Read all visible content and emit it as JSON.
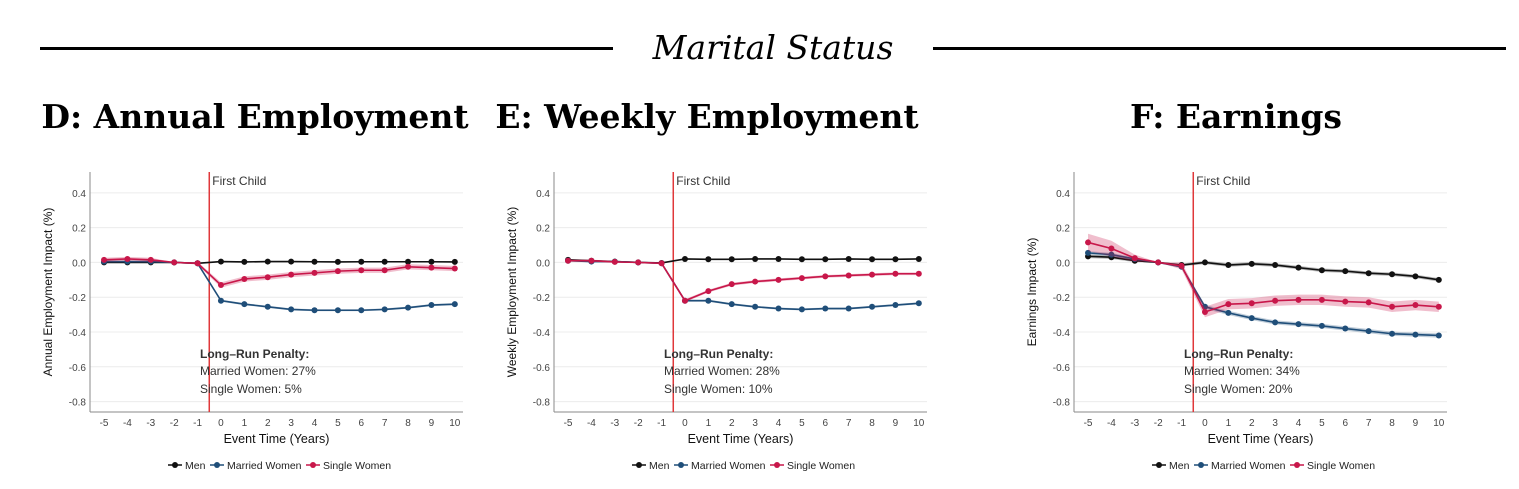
{
  "header": {
    "section_title": "Marital Status"
  },
  "colors": {
    "men": "#111111",
    "married": "#1f4e79",
    "single": "#c8174a",
    "event_line": "#e0383a"
  },
  "chart_data": [
    {
      "type": "line",
      "panel_title": "D: Annual Employment",
      "xlabel": "Event Time (Years)",
      "ylabel": "Annual Employment Impact (%)",
      "x": [
        -5,
        -4,
        -3,
        -2,
        -1,
        0,
        1,
        2,
        3,
        4,
        5,
        6,
        7,
        8,
        9,
        10
      ],
      "xlim": [
        -5.6,
        10.35
      ],
      "ylim": [
        -0.86,
        0.52
      ],
      "yticks": [
        0.4,
        0.2,
        0.0,
        -0.2,
        -0.4,
        -0.6,
        -0.8
      ],
      "ytick_labels": [
        "0.4",
        "0.2",
        "0.0",
        "-0.2",
        "-0.4",
        "-0.6",
        "-0.8"
      ],
      "xtick_labels": [
        "-5",
        "-4",
        "-3",
        "-2",
        "-1",
        "0",
        "1",
        "2",
        "3",
        "4",
        "5",
        "6",
        "7",
        "8",
        "9",
        "10"
      ],
      "event_x": -0.5,
      "event_label": "First Child",
      "series": [
        {
          "name": "Men",
          "key": "men",
          "values": [
            0.0,
            0.0,
            0.0,
            0.0,
            -0.005,
            0.005,
            0.003,
            0.005,
            0.005,
            0.004,
            0.003,
            0.004,
            0.004,
            0.004,
            0.004,
            0.003
          ],
          "band": [
            0.003,
            0.003,
            0.003,
            0,
            0.003,
            0.003,
            0.003,
            0.003,
            0.003,
            0.003,
            0.003,
            0.003,
            0.003,
            0.003,
            0.003,
            0.003
          ]
        },
        {
          "name": "Married Women",
          "key": "married",
          "values": [
            0.005,
            0.005,
            0.005,
            0.0,
            -0.005,
            -0.22,
            -0.24,
            -0.255,
            -0.27,
            -0.275,
            -0.275,
            -0.275,
            -0.27,
            -0.26,
            -0.245,
            -0.24
          ],
          "band": [
            0.004,
            0.004,
            0.004,
            0,
            0.004,
            0.006,
            0.006,
            0.006,
            0.006,
            0.006,
            0.006,
            0.006,
            0.006,
            0.006,
            0.006,
            0.006
          ]
        },
        {
          "name": "Single Women",
          "key": "single",
          "values": [
            0.015,
            0.02,
            0.015,
            0.0,
            -0.005,
            -0.13,
            -0.095,
            -0.085,
            -0.07,
            -0.06,
            -0.05,
            -0.045,
            -0.045,
            -0.025,
            -0.03,
            -0.035
          ],
          "band": [
            0.012,
            0.012,
            0.012,
            0,
            0.008,
            0.015,
            0.015,
            0.015,
            0.015,
            0.015,
            0.015,
            0.015,
            0.015,
            0.015,
            0.015,
            0.015
          ]
        }
      ],
      "annotation_title": "Long–Run Penalty:",
      "annotation_lines": [
        "Married Women: 27%",
        "Single Women: 5%"
      ],
      "legend": [
        "Men",
        "Married Women",
        "Single Women"
      ]
    },
    {
      "type": "line",
      "panel_title": "E: Weekly Employment",
      "xlabel": "Event Time (Years)",
      "ylabel": "Weekly Employment Impact (%)",
      "x": [
        -5,
        -4,
        -3,
        -2,
        -1,
        0,
        1,
        2,
        3,
        4,
        5,
        6,
        7,
        8,
        9,
        10
      ],
      "xlim": [
        -5.6,
        10.35
      ],
      "ylim": [
        -0.86,
        0.52
      ],
      "yticks": [
        0.4,
        0.2,
        0.0,
        -0.2,
        -0.4,
        -0.6,
        -0.8
      ],
      "ytick_labels": [
        "0.4",
        "0.2",
        "0.0",
        "-0.2",
        "-0.4",
        "-0.6",
        "-0.8"
      ],
      "xtick_labels": [
        "-5",
        "-4",
        "-3",
        "-2",
        "-1",
        "0",
        "1",
        "2",
        "3",
        "4",
        "5",
        "6",
        "7",
        "8",
        "9",
        "10"
      ],
      "event_x": -0.5,
      "event_label": "First Child",
      "series": [
        {
          "name": "Men",
          "key": "men",
          "values": [
            0.015,
            0.01,
            0.005,
            0.0,
            -0.003,
            0.02,
            0.018,
            0.018,
            0.02,
            0.02,
            0.018,
            0.018,
            0.02,
            0.018,
            0.018,
            0.02
          ],
          "band": [
            0.003,
            0.003,
            0.003,
            0,
            0.003,
            0.003,
            0.003,
            0.003,
            0.003,
            0.003,
            0.003,
            0.003,
            0.003,
            0.003,
            0.003,
            0.003
          ]
        },
        {
          "name": "Married Women",
          "key": "married",
          "values": [
            0.01,
            0.005,
            0.005,
            0.0,
            -0.005,
            -0.22,
            -0.22,
            -0.24,
            -0.255,
            -0.265,
            -0.27,
            -0.265,
            -0.265,
            -0.255,
            -0.245,
            -0.235
          ],
          "band": [
            0.004,
            0.004,
            0.004,
            0,
            0.004,
            0.006,
            0.006,
            0.006,
            0.006,
            0.006,
            0.006,
            0.006,
            0.006,
            0.006,
            0.006,
            0.006
          ]
        },
        {
          "name": "Single Women",
          "key": "single",
          "values": [
            0.01,
            0.01,
            0.003,
            0.0,
            -0.005,
            -0.22,
            -0.165,
            -0.125,
            -0.11,
            -0.1,
            -0.09,
            -0.08,
            -0.075,
            -0.07,
            -0.065,
            -0.065
          ],
          "band": [
            0.006,
            0.006,
            0.006,
            0,
            0.006,
            0.008,
            0.008,
            0.008,
            0.008,
            0.008,
            0.008,
            0.008,
            0.008,
            0.008,
            0.008,
            0.008
          ]
        }
      ],
      "annotation_title": "Long–Run Penalty:",
      "annotation_lines": [
        "Married Women: 28%",
        "Single Women: 10%"
      ],
      "legend": [
        "Men",
        "Married Women",
        "Single Women"
      ]
    },
    {
      "type": "line",
      "panel_title": "F: Earnings",
      "xlabel": "Event Time (Years)",
      "ylabel": "Earnings Impact (%)",
      "x": [
        -5,
        -4,
        -3,
        -2,
        -1,
        0,
        1,
        2,
        3,
        4,
        5,
        6,
        7,
        8,
        9,
        10
      ],
      "xlim": [
        -5.6,
        10.35
      ],
      "ylim": [
        -0.86,
        0.52
      ],
      "yticks": [
        0.4,
        0.2,
        0.0,
        -0.2,
        -0.4,
        -0.6,
        -0.8
      ],
      "ytick_labels": [
        "0.4",
        "0.2",
        "0.0",
        "-0.2",
        "-0.4",
        "-0.6",
        "-0.8"
      ],
      "xtick_labels": [
        "-5",
        "-4",
        "-3",
        "-2",
        "-1",
        "0",
        "1",
        "2",
        "3",
        "4",
        "5",
        "6",
        "7",
        "8",
        "9",
        "10"
      ],
      "event_x": -0.5,
      "event_label": "First Child",
      "series": [
        {
          "name": "Men",
          "key": "men",
          "values": [
            0.035,
            0.03,
            0.01,
            0.0,
            -0.015,
            0.0,
            -0.015,
            -0.008,
            -0.015,
            -0.03,
            -0.045,
            -0.05,
            -0.062,
            -0.068,
            -0.08,
            -0.1
          ],
          "band": [
            0.01,
            0.01,
            0.008,
            0,
            0.008,
            0.01,
            0.01,
            0.01,
            0.01,
            0.01,
            0.01,
            0.01,
            0.01,
            0.01,
            0.01,
            0.01
          ]
        },
        {
          "name": "Married Women",
          "key": "married",
          "values": [
            0.055,
            0.045,
            0.02,
            0.0,
            -0.025,
            -0.255,
            -0.29,
            -0.32,
            -0.345,
            -0.355,
            -0.365,
            -0.38,
            -0.395,
            -0.41,
            -0.415,
            -0.42
          ],
          "band": [
            0.01,
            0.01,
            0.008,
            0,
            0.008,
            0.012,
            0.012,
            0.012,
            0.012,
            0.012,
            0.012,
            0.012,
            0.012,
            0.012,
            0.012,
            0.012
          ]
        },
        {
          "name": "Single Women",
          "key": "single",
          "values": [
            0.115,
            0.08,
            0.025,
            0.0,
            -0.02,
            -0.285,
            -0.24,
            -0.235,
            -0.22,
            -0.215,
            -0.215,
            -0.225,
            -0.23,
            -0.255,
            -0.245,
            -0.255
          ],
          "band": [
            0.05,
            0.045,
            0.02,
            0,
            0.02,
            0.03,
            0.03,
            0.03,
            0.03,
            0.03,
            0.03,
            0.03,
            0.03,
            0.03,
            0.03,
            0.03
          ]
        }
      ],
      "annotation_title": "Long–Run Penalty:",
      "annotation_lines": [
        "Married Women: 34%",
        "Single Women: 20%"
      ],
      "legend": [
        "Men",
        "Married Women",
        "Single Women"
      ]
    }
  ]
}
